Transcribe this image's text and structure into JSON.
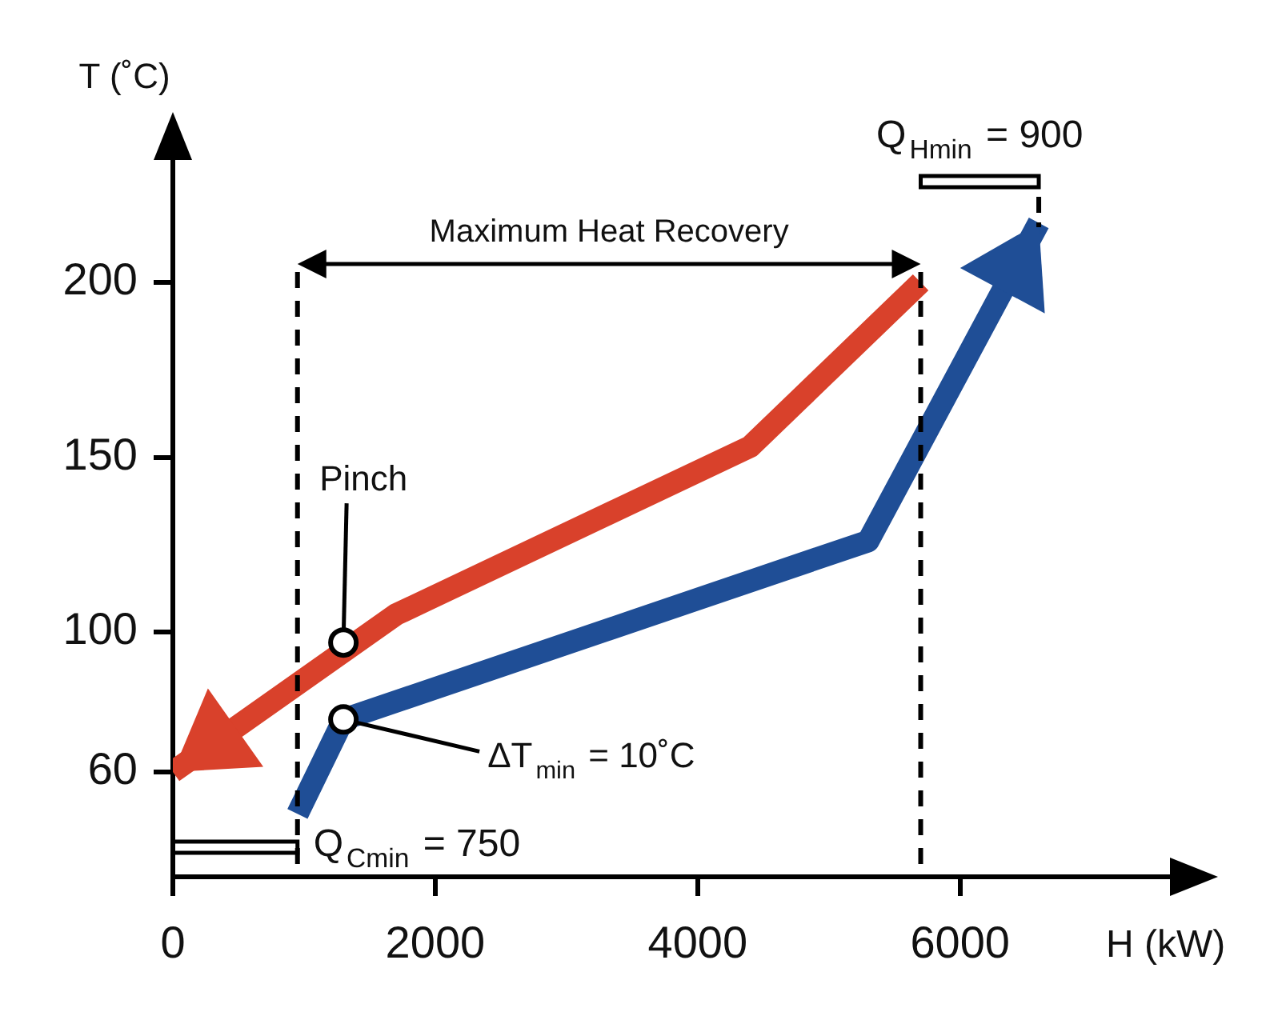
{
  "chart_data": {
    "type": "line",
    "xlabel": "H (kW)",
    "ylabel": "T (˚C)",
    "xlim": [
      0,
      7600
    ],
    "ylim": [
      30,
      235
    ],
    "xticks": [
      0,
      2000,
      4000,
      6000
    ],
    "yticks": [
      60,
      100,
      150,
      200
    ],
    "grid": false,
    "legend": false,
    "marker": "none",
    "series": [
      {
        "color": "#d9412b",
        "x": [
          5700,
          4400,
          1700,
          0
        ],
        "values": [
          200,
          153,
          105,
          60
        ]
      },
      {
        "color": "#1f4e96",
        "x": [
          950,
          1300,
          5300,
          6600
        ],
        "values": [
          48,
          75,
          126,
          217
        ]
      }
    ],
    "ref_lines": [
      {
        "axis": "x",
        "value": 950,
        "line_style": "dashed",
        "color": "#000000"
      },
      {
        "axis": "x",
        "value": 5700,
        "line_style": "dashed",
        "color": "#000000"
      }
    ],
    "annotations": [
      "Maximum Heat Recovery",
      "Q$_{Cmin}$ = 750",
      "Q$_{Hmin}$ = 900",
      {
        "text": "Pinch",
        "x": 1300,
        "y": 97
      },
      {
        "text": "ΔT$_{min}$ = 10˚C",
        "x": 1300,
        "y": 75
      }
    ]
  }
}
